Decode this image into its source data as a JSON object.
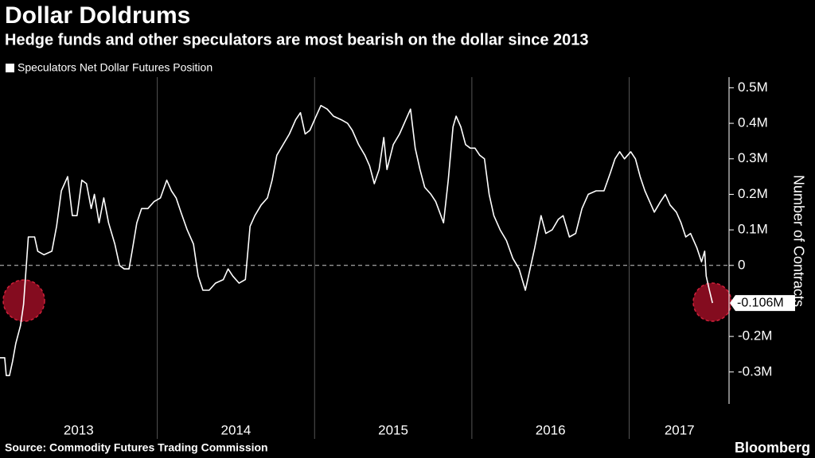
{
  "chart_data": {
    "type": "line",
    "title": "Dollar Doldrums",
    "subtitle": "Hedge funds and other speculators are most bearish on the dollar since 2013",
    "y_axis_label": "Number of Contracts",
    "source": "Source: Commodity Futures Trading Commission",
    "brand": "Bloomberg",
    "series": [
      {
        "name": "Speculators Net Dollar Futures Position",
        "color": "#ffffff",
        "x": [
          2013.0,
          2013.03,
          2013.04,
          2013.06,
          2013.08,
          2013.1,
          2013.13,
          2013.15,
          2013.18,
          2013.22,
          2013.24,
          2013.28,
          2013.33,
          2013.36,
          2013.39,
          2013.43,
          2013.46,
          2013.49,
          2013.52,
          2013.55,
          2013.58,
          2013.6,
          2013.63,
          2013.66,
          2013.69,
          2013.73,
          2013.76,
          2013.79,
          2013.82,
          2013.84,
          2013.87,
          2013.9,
          2013.94,
          2013.98,
          2014.02,
          2014.06,
          2014.09,
          2014.12,
          2014.15,
          2014.19,
          2014.23,
          2014.26,
          2014.29,
          2014.33,
          2014.37,
          2014.42,
          2014.45,
          2014.48,
          2014.52,
          2014.56,
          2014.59,
          2014.62,
          2014.66,
          2014.7,
          2014.73,
          2014.76,
          2014.8,
          2014.84,
          2014.88,
          2014.91,
          2014.94,
          2014.97,
          2015.01,
          2015.04,
          2015.08,
          2015.12,
          2015.17,
          2015.21,
          2015.24,
          2015.28,
          2015.32,
          2015.35,
          2015.38,
          2015.41,
          2015.44,
          2015.46,
          2015.5,
          2015.54,
          2015.58,
          2015.61,
          2015.64,
          2015.67,
          2015.7,
          2015.74,
          2015.77,
          2015.82,
          2015.85,
          2015.88,
          2015.9,
          2015.93,
          2015.96,
          2015.99,
          2016.02,
          2016.05,
          2016.08,
          2016.11,
          2016.14,
          2016.18,
          2016.22,
          2016.26,
          2016.3,
          2016.34,
          2016.37,
          2016.4,
          2016.44,
          2016.47,
          2016.51,
          2016.55,
          2016.58,
          2016.62,
          2016.66,
          2016.7,
          2016.74,
          2016.79,
          2016.84,
          2016.88,
          2016.91,
          2016.94,
          2016.97,
          2017.01,
          2017.04,
          2017.07,
          2017.1,
          2017.13,
          2017.16,
          2017.2,
          2017.23,
          2017.26,
          2017.3,
          2017.33,
          2017.36,
          2017.39,
          2017.43,
          2017.46,
          2017.48,
          2017.49,
          2017.51,
          2017.53
        ],
        "values": [
          -0.26,
          -0.26,
          -0.31,
          -0.31,
          -0.27,
          -0.22,
          -0.17,
          -0.11,
          0.08,
          0.08,
          0.04,
          0.03,
          0.04,
          0.11,
          0.21,
          0.25,
          0.14,
          0.14,
          0.24,
          0.23,
          0.16,
          0.2,
          0.12,
          0.19,
          0.12,
          0.06,
          0.0,
          -0.01,
          -0.01,
          0.04,
          0.12,
          0.16,
          0.16,
          0.18,
          0.19,
          0.24,
          0.21,
          0.19,
          0.15,
          0.1,
          0.06,
          -0.03,
          -0.07,
          -0.07,
          -0.05,
          -0.04,
          -0.01,
          -0.03,
          -0.05,
          -0.04,
          0.11,
          0.14,
          0.17,
          0.19,
          0.24,
          0.31,
          0.34,
          0.37,
          0.41,
          0.43,
          0.37,
          0.38,
          0.42,
          0.45,
          0.44,
          0.42,
          0.41,
          0.4,
          0.38,
          0.34,
          0.31,
          0.28,
          0.23,
          0.27,
          0.36,
          0.27,
          0.34,
          0.37,
          0.41,
          0.44,
          0.33,
          0.27,
          0.22,
          0.2,
          0.18,
          0.12,
          0.24,
          0.39,
          0.42,
          0.39,
          0.34,
          0.33,
          0.33,
          0.31,
          0.3,
          0.2,
          0.14,
          0.1,
          0.07,
          0.02,
          -0.01,
          -0.07,
          -0.01,
          0.05,
          0.14,
          0.09,
          0.1,
          0.13,
          0.14,
          0.08,
          0.09,
          0.16,
          0.2,
          0.21,
          0.21,
          0.26,
          0.3,
          0.32,
          0.3,
          0.32,
          0.3,
          0.25,
          0.21,
          0.18,
          0.15,
          0.18,
          0.2,
          0.17,
          0.15,
          0.12,
          0.08,
          0.09,
          0.05,
          0.01,
          0.04,
          -0.03,
          -0.07,
          -0.106
        ]
      }
    ],
    "callout": {
      "value": -0.106,
      "label": "-0.106M"
    },
    "xlim": [
      2013,
      2017.63
    ],
    "xticks": [
      {
        "value": 2013.5,
        "label": "2013"
      },
      {
        "value": 2014.5,
        "label": "2014"
      },
      {
        "value": 2015.5,
        "label": "2015"
      },
      {
        "value": 2016.5,
        "label": "2016"
      },
      {
        "value": 2017.32,
        "label": "2017"
      }
    ],
    "year_boundaries": [
      2014,
      2015,
      2016,
      2017
    ],
    "ylim": [
      -0.39,
      0.53
    ],
    "yticks": [
      {
        "value": -0.3,
        "label": "-0.3M"
      },
      {
        "value": -0.2,
        "label": "-0.2M"
      },
      0,
      {
        "value": 0.1,
        "label": "0.1M"
      },
      {
        "value": 0.2,
        "label": "0.2M"
      },
      {
        "value": 0.3,
        "label": "0.3M"
      },
      {
        "value": 0.4,
        "label": "0.4M"
      },
      {
        "value": 0.5,
        "label": "0.5M"
      }
    ],
    "zero_line": true
  }
}
